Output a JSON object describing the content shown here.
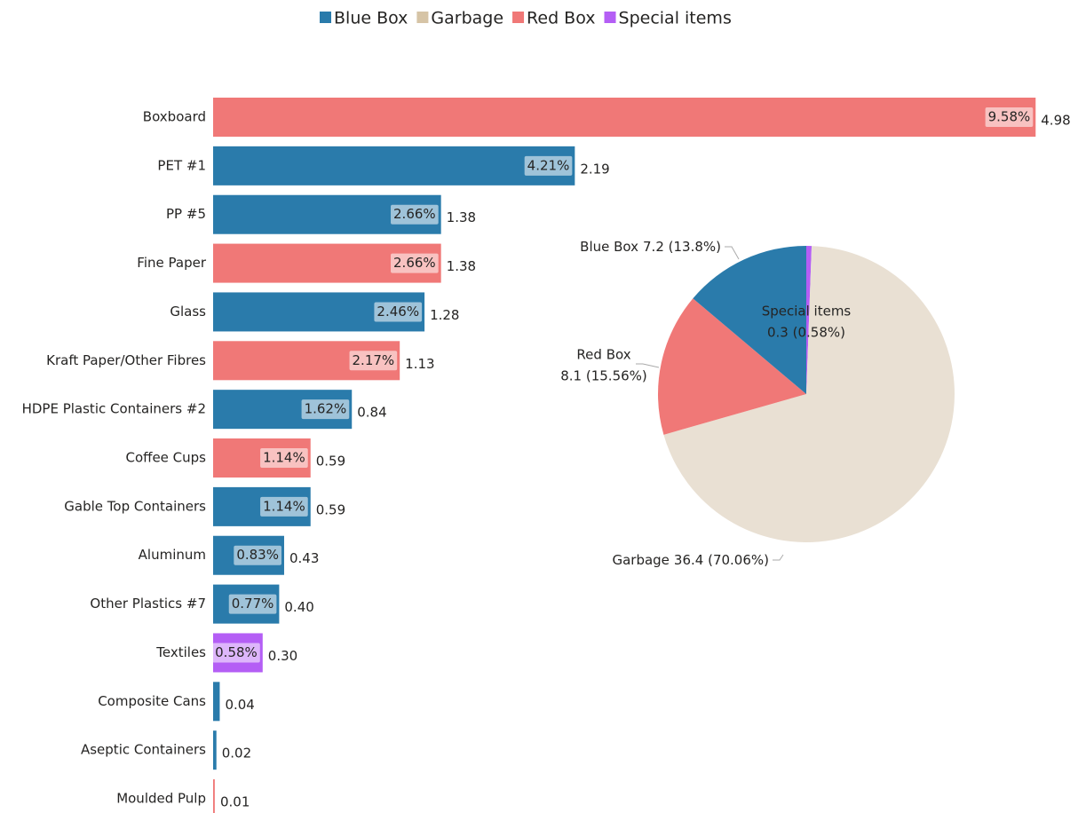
{
  "chart_data": [
    {
      "type": "bar",
      "orientation": "horizontal",
      "categories": [
        "Boxboard",
        "PET #1",
        "PP #5",
        "Fine Paper",
        "Glass",
        "Kraft Paper/Other Fibres",
        "HDPE Plastic Containers #2",
        "Coffee Cups",
        "Gable Top Containers",
        "Aluminum",
        "Other Plastics #7",
        "Textiles",
        "Composite Cans",
        "Aseptic Containers",
        "Moulded Pulp"
      ],
      "values": [
        4.98,
        2.19,
        1.38,
        1.38,
        1.28,
        1.13,
        0.84,
        0.59,
        0.59,
        0.43,
        0.4,
        0.3,
        0.04,
        0.02,
        0.01
      ],
      "value_labels": [
        "4.98",
        "2.19",
        "1.38",
        "1.38",
        "1.28",
        "1.13",
        "0.84",
        "0.59",
        "0.59",
        "0.43",
        "0.40",
        "0.30",
        "0.04",
        "0.02",
        "0.01"
      ],
      "share_labels": [
        "9.58%",
        "4.21%",
        "2.66%",
        "2.66%",
        "2.46%",
        "2.17%",
        "1.62%",
        "1.14%",
        "1.14%",
        "0.83%",
        "0.77%",
        "0.58%",
        null,
        null,
        null
      ],
      "groups": [
        "Red Box",
        "Blue Box",
        "Blue Box",
        "Red Box",
        "Blue Box",
        "Red Box",
        "Blue Box",
        "Red Box",
        "Blue Box",
        "Blue Box",
        "Blue Box",
        "Special items",
        "Blue Box",
        "Blue Box",
        "Red Box"
      ],
      "xlim": [
        0,
        5
      ],
      "legend": {
        "position": "top",
        "entries": [
          {
            "name": "Blue Box",
            "color": "#2a7bab"
          },
          {
            "name": "Garbage",
            "color": "#d6c4a6"
          },
          {
            "name": "Red Box",
            "color": "#f07877"
          },
          {
            "name": "Special items",
            "color": "#b45ef5"
          }
        ]
      }
    },
    {
      "type": "pie",
      "categories": [
        "Special items",
        "Garbage",
        "Red Box",
        "Blue Box"
      ],
      "values": [
        0.3,
        36.4,
        8.1,
        7.2
      ],
      "value_labels": [
        "0.3 (0.58%)",
        "36.4 (70.06%)",
        "8.1 (15.56%)",
        "7.2 (13.8%)"
      ],
      "colors": [
        "#b45ef5",
        "#e9e0d3",
        "#f07877",
        "#2a7bab"
      ]
    }
  ]
}
